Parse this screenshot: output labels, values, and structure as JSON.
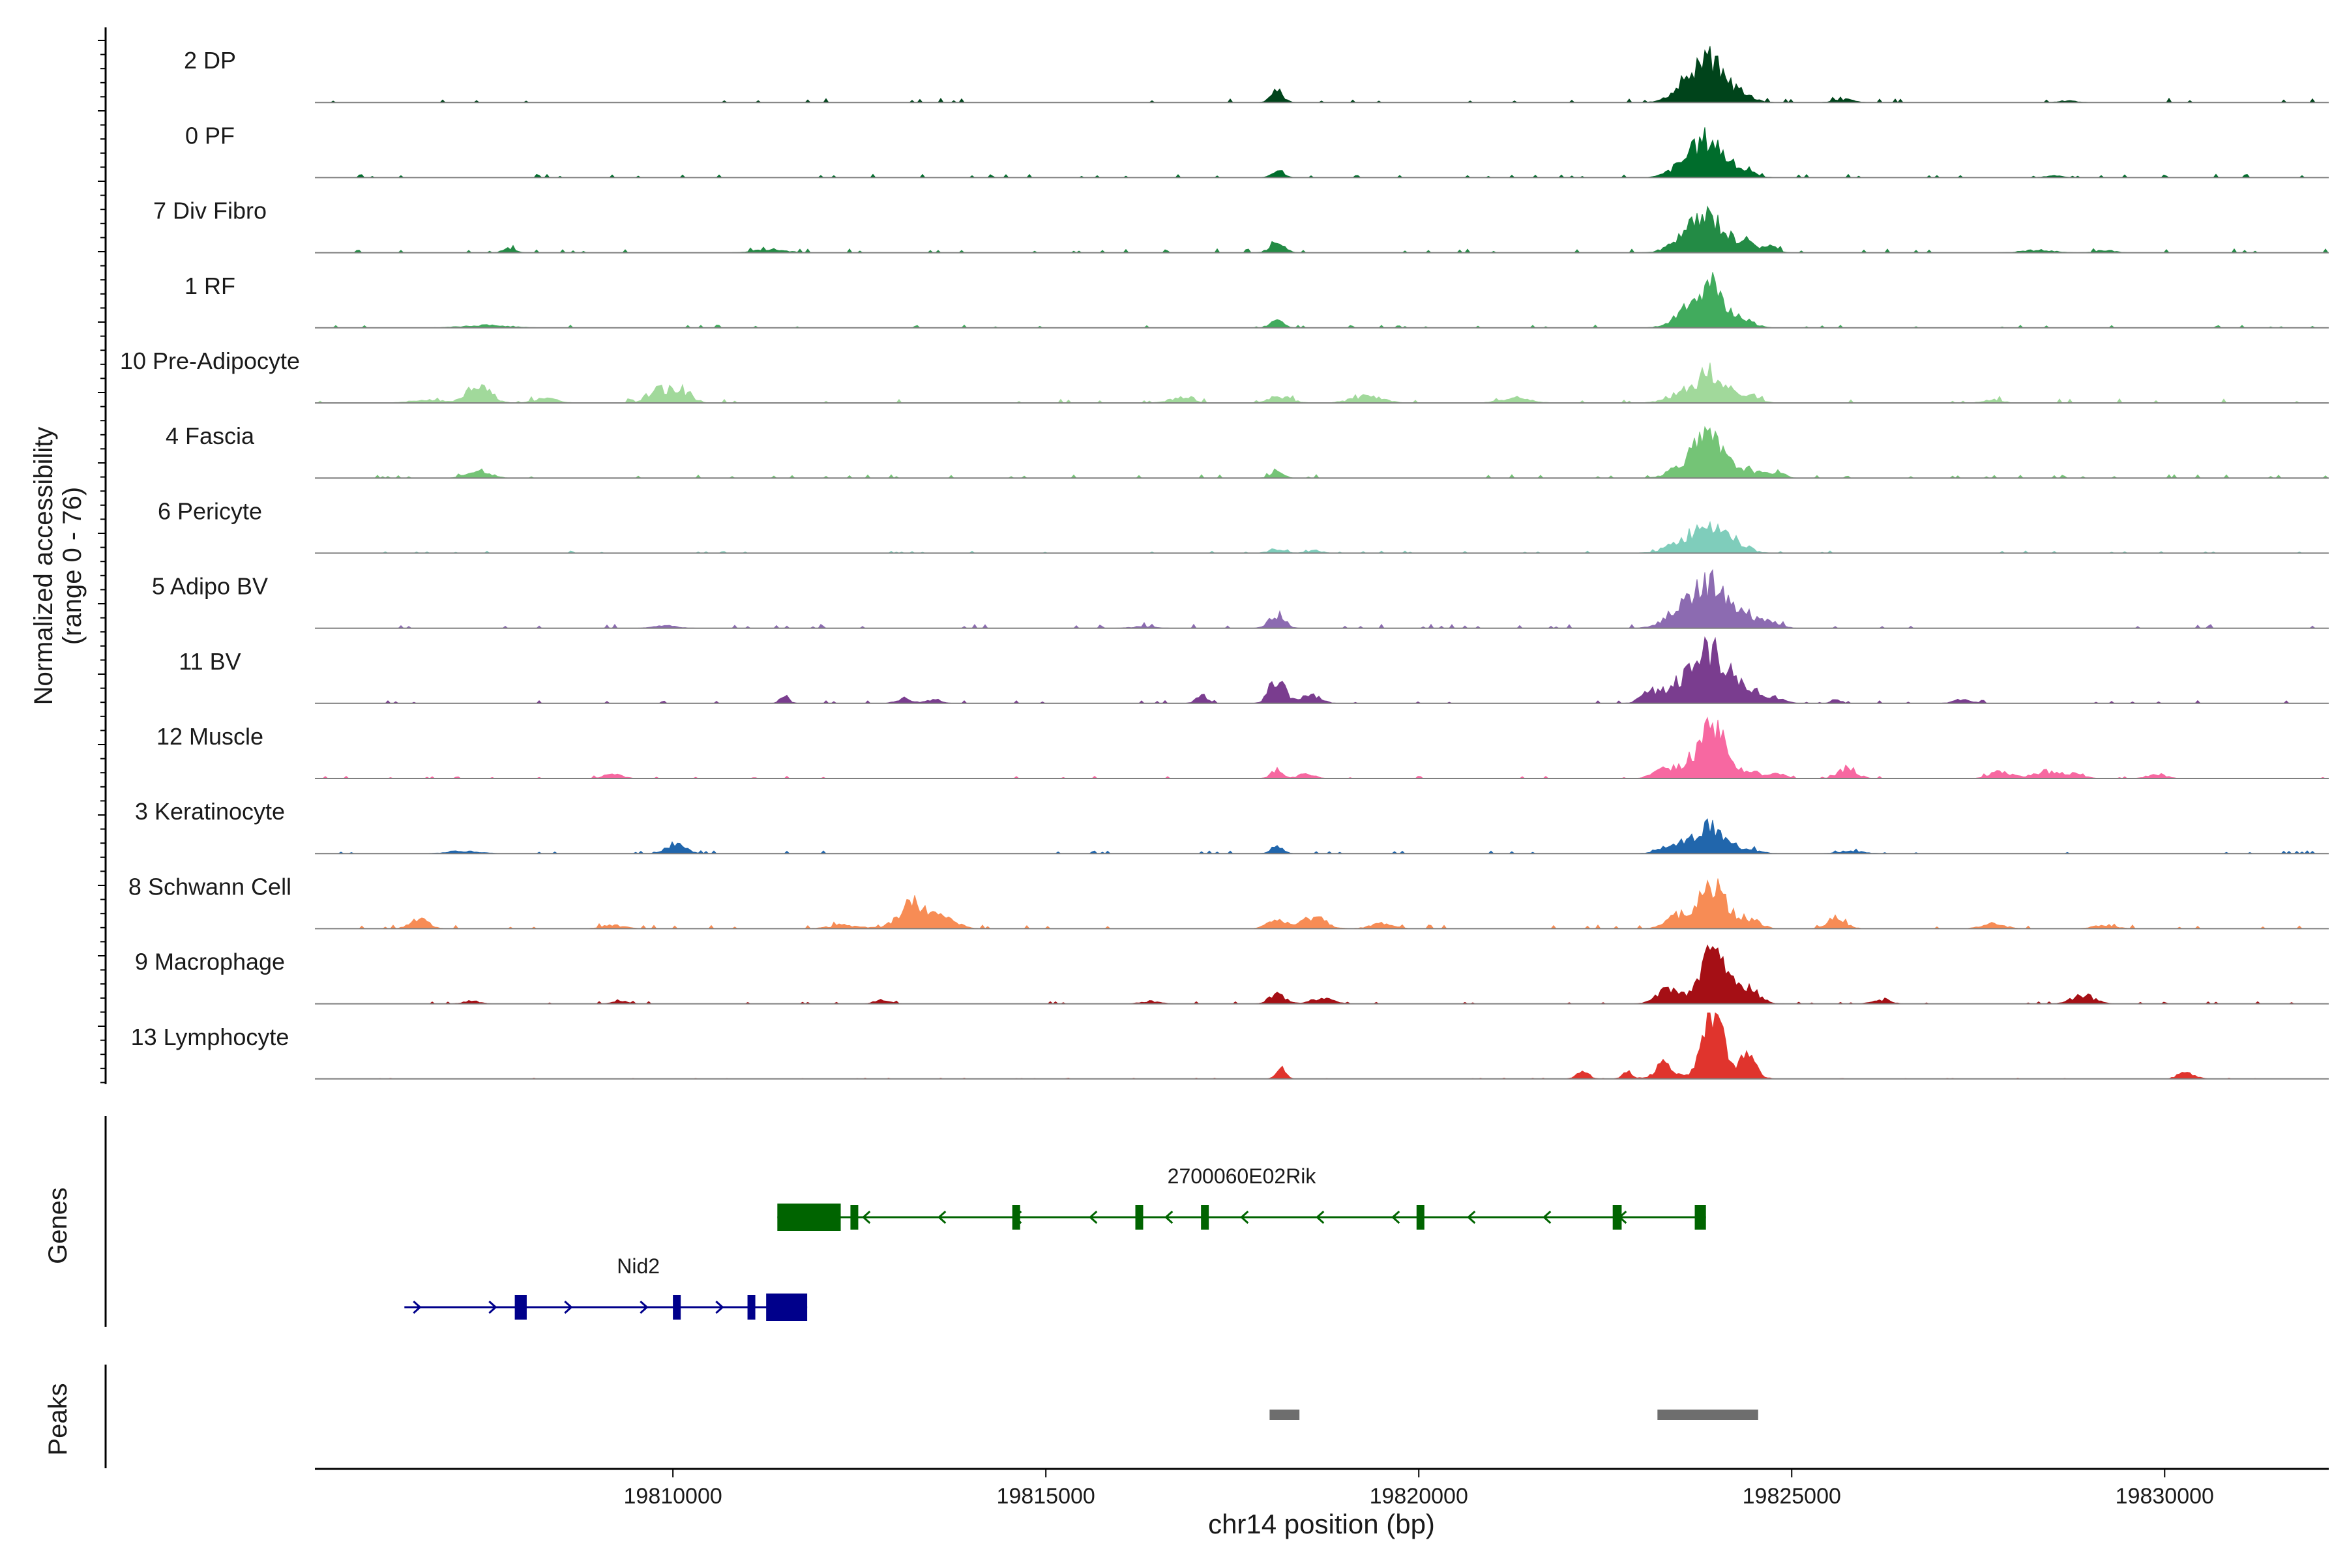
{
  "chart_data": {
    "type": "area",
    "title": "",
    "ylabel": "Normalized accessibility",
    "ylabel_range": "(range 0 - 76)",
    "ylim": [
      0,
      76
    ],
    "xlabel": "chr14 position (bp)",
    "xlim": [
      19805200,
      19832200
    ],
    "x_ticks": [
      19810000,
      19815000,
      19820000,
      19825000,
      19830000
    ],
    "x_tick_labels": [
      "19810000",
      "19815000",
      "19820000",
      "19825000",
      "19830000"
    ],
    "grid": false,
    "baseline_color": "#7f7f7f",
    "series": [
      {
        "name": "2 DP",
        "color": "#00441b",
        "peaks": [
          [
            19818100,
            14,
            80
          ],
          [
            19823900,
            50,
            200
          ],
          [
            19823550,
            14,
            180
          ],
          [
            19824350,
            8,
            150
          ],
          [
            19825700,
            4,
            120
          ],
          [
            19828700,
            2,
            120
          ]
        ],
        "noise": 1.5,
        "seed": 1
      },
      {
        "name": "0 PF",
        "color": "#006d2c",
        "peaks": [
          [
            19818100,
            10,
            80
          ],
          [
            19823900,
            45,
            190
          ],
          [
            19823550,
            14,
            180
          ],
          [
            19824350,
            8,
            150
          ],
          [
            19828500,
            2,
            120
          ]
        ],
        "noise": 1.2,
        "seed": 2
      },
      {
        "name": "7 Div Fibro",
        "color": "#238b45",
        "peaks": [
          [
            19807800,
            5,
            80
          ],
          [
            19811300,
            4,
            200
          ],
          [
            19818100,
            14,
            90
          ],
          [
            19823900,
            42,
            190
          ],
          [
            19823550,
            16,
            180
          ],
          [
            19824350,
            12,
            150
          ],
          [
            19824700,
            8,
            100
          ],
          [
            19828300,
            3,
            200
          ],
          [
            19829200,
            3,
            120
          ]
        ],
        "noise": 1.4,
        "seed": 3
      },
      {
        "name": "1 RF",
        "color": "#41ab5d",
        "peaks": [
          [
            19807500,
            3,
            300
          ],
          [
            19818100,
            9,
            80
          ],
          [
            19823900,
            48,
            190
          ],
          [
            19823550,
            12,
            180
          ],
          [
            19824350,
            10,
            140
          ]
        ],
        "noise": 1.0,
        "seed": 4
      },
      {
        "name": "10 Pre-Adipocyte",
        "color": "#a1d99b",
        "peaks": [
          [
            19807400,
            22,
            150
          ],
          [
            19809850,
            16,
            150
          ],
          [
            19810150,
            12,
            120
          ],
          [
            19806700,
            4,
            200
          ],
          [
            19808300,
            5,
            150
          ],
          [
            19816800,
            6,
            150
          ],
          [
            19818150,
            7,
            150
          ],
          [
            19819300,
            8,
            200
          ],
          [
            19821300,
            5,
            200
          ],
          [
            19823550,
            12,
            200
          ],
          [
            19823950,
            36,
            180
          ],
          [
            19824400,
            8,
            150
          ],
          [
            19827700,
            4,
            120
          ]
        ],
        "noise": 1.5,
        "seed": 5
      },
      {
        "name": "4 Fascia",
        "color": "#74c476",
        "peaks": [
          [
            19807400,
            10,
            140
          ],
          [
            19818100,
            9,
            80
          ],
          [
            19823900,
            44,
            190
          ],
          [
            19823550,
            14,
            180
          ],
          [
            19824400,
            10,
            160
          ],
          [
            19824800,
            7,
            100
          ]
        ],
        "noise": 1.2,
        "seed": 6
      },
      {
        "name": "6 Pericyte",
        "color": "#7fcdbb",
        "peaks": [
          [
            19818100,
            5,
            100
          ],
          [
            19818600,
            3,
            100
          ],
          [
            19823900,
            38,
            200
          ],
          [
            19823500,
            10,
            200
          ],
          [
            19824300,
            8,
            150
          ]
        ],
        "noise": 0.8,
        "seed": 7
      },
      {
        "name": "5 Adipo BV",
        "color": "#8c6bb1",
        "peaks": [
          [
            19818100,
            16,
            100
          ],
          [
            19823900,
            50,
            210
          ],
          [
            19823500,
            18,
            200
          ],
          [
            19824350,
            16,
            180
          ],
          [
            19824750,
            6,
            120
          ],
          [
            19809900,
            3,
            150
          ],
          [
            19816300,
            2,
            150
          ]
        ],
        "noise": 1.5,
        "seed": 8
      },
      {
        "name": "11 BV",
        "color": "#7a3d8f",
        "peaks": [
          [
            19811500,
            8,
            60
          ],
          [
            19813100,
            6,
            100
          ],
          [
            19813500,
            5,
            100
          ],
          [
            19817100,
            10,
            80
          ],
          [
            19818100,
            28,
            100
          ],
          [
            19818550,
            12,
            120
          ],
          [
            19823100,
            12,
            120
          ],
          [
            19823500,
            22,
            180
          ],
          [
            19823900,
            60,
            200
          ],
          [
            19824350,
            20,
            180
          ],
          [
            19824800,
            6,
            120
          ],
          [
            19825600,
            5,
            60
          ],
          [
            19827300,
            4,
            120
          ]
        ],
        "noise": 1.0,
        "seed": 9
      },
      {
        "name": "12 Muscle",
        "color": "#f768a1",
        "peaks": [
          [
            19809200,
            5,
            120
          ],
          [
            19818100,
            10,
            80
          ],
          [
            19818500,
            6,
            100
          ],
          [
            19823300,
            10,
            150
          ],
          [
            19823650,
            16,
            150
          ],
          [
            19823950,
            58,
            160
          ],
          [
            19824400,
            10,
            140
          ],
          [
            19824800,
            6,
            100
          ],
          [
            19825750,
            12,
            120
          ],
          [
            19827800,
            8,
            150
          ],
          [
            19828400,
            8,
            150
          ],
          [
            19828800,
            6,
            120
          ],
          [
            19829900,
            5,
            120
          ]
        ],
        "noise": 0.8,
        "seed": 10
      },
      {
        "name": "3 Keratinocyte",
        "color": "#2166ac",
        "peaks": [
          [
            19807200,
            3,
            200
          ],
          [
            19810050,
            14,
            120
          ],
          [
            19818100,
            8,
            80
          ],
          [
            19823900,
            32,
            190
          ],
          [
            19823450,
            10,
            180
          ],
          [
            19824400,
            6,
            150
          ],
          [
            19825800,
            3,
            150
          ]
        ],
        "noise": 1.0,
        "seed": 11
      },
      {
        "name": "8 Schwann Cell",
        "color": "#f78c55",
        "peaks": [
          [
            19806600,
            12,
            120
          ],
          [
            19809200,
            4,
            150
          ],
          [
            19812300,
            4,
            200
          ],
          [
            19813250,
            30,
            200
          ],
          [
            19813700,
            8,
            150
          ],
          [
            19818100,
            10,
            120
          ],
          [
            19818600,
            14,
            150
          ],
          [
            19819500,
            6,
            150
          ],
          [
            19823550,
            18,
            180
          ],
          [
            19823950,
            52,
            170
          ],
          [
            19824400,
            12,
            150
          ],
          [
            19825600,
            14,
            120
          ],
          [
            19827700,
            6,
            150
          ],
          [
            19829200,
            4,
            150
          ]
        ],
        "noise": 1.4,
        "seed": 12
      },
      {
        "name": "9 Macrophage",
        "color": "#a50f15",
        "peaks": [
          [
            19807300,
            4,
            100
          ],
          [
            19809300,
            4,
            100
          ],
          [
            19812800,
            4,
            100
          ],
          [
            19816400,
            3,
            120
          ],
          [
            19818100,
            12,
            100
          ],
          [
            19818700,
            6,
            150
          ],
          [
            19823350,
            16,
            150
          ],
          [
            19823950,
            62,
            170
          ],
          [
            19824400,
            18,
            150
          ],
          [
            19826200,
            4,
            120
          ],
          [
            19828900,
            10,
            150
          ]
        ],
        "noise": 0.8,
        "seed": 13
      },
      {
        "name": "13 Lymphocyte",
        "color": "#e0342d",
        "peaks": [
          [
            19818150,
            14,
            60
          ],
          [
            19822200,
            8,
            80
          ],
          [
            19822800,
            8,
            70
          ],
          [
            19823300,
            20,
            120
          ],
          [
            19823950,
            72,
            140
          ],
          [
            19824400,
            24,
            120
          ],
          [
            19830300,
            8,
            100
          ]
        ],
        "noise": 0.3,
        "seed": 14
      }
    ],
    "genes_label": "Genes",
    "genes": [
      {
        "name": "2700060E02Rik",
        "strand": "-",
        "start": 19811400,
        "end": 19823850,
        "color": "#006400",
        "exons": [
          [
            19811400,
            19812250
          ],
          [
            19812380,
            19812430
          ],
          [
            19814550,
            19814620
          ],
          [
            19816200,
            19816280
          ],
          [
            19817080,
            19817150
          ],
          [
            19819970,
            19820050
          ],
          [
            19822600,
            19822720
          ],
          [
            19823700,
            19823850
          ]
        ]
      },
      {
        "name": "Nid2",
        "strand": "+",
        "start": 19806400,
        "end": 19811800,
        "color": "#00008b",
        "exons": [
          [
            19807880,
            19808040
          ],
          [
            19810000,
            19810100
          ],
          [
            19811000,
            19811080
          ],
          [
            19811250,
            19811800
          ]
        ]
      }
    ],
    "peaks_label": "Peaks",
    "peaks_track": [
      [
        19818000,
        19818400
      ],
      [
        19823200,
        19824550
      ]
    ],
    "peak_color": "#6e6e6e"
  }
}
